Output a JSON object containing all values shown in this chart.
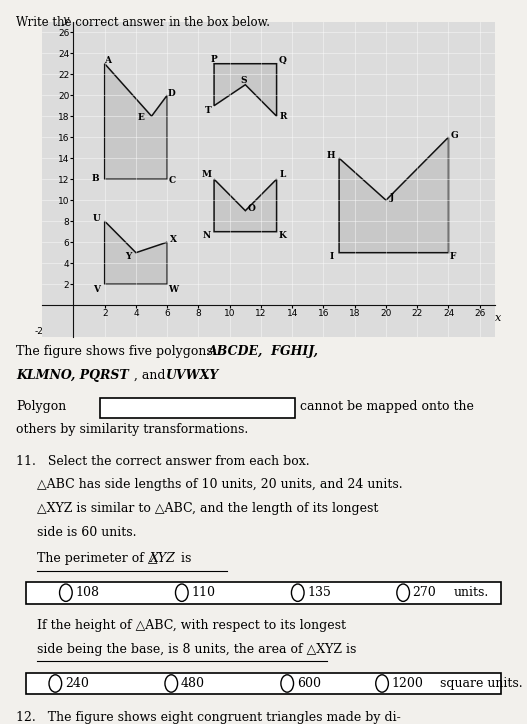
{
  "title": "Write the correct answer in the box below.",
  "bg_color": "#f2f0ec",
  "graph_bg": "#dcdcdc",
  "polygon_fill": "#c8c8c8",
  "polygon_edge": "#111111",
  "axis_color": "#111111",
  "xlabel": "x",
  "ylabel": "y",
  "xlim": [
    -2,
    27
  ],
  "ylim": [
    -3,
    27
  ],
  "xticks": [
    2,
    4,
    6,
    8,
    10,
    12,
    14,
    16,
    18,
    20,
    22,
    24,
    26
  ],
  "yticks": [
    2,
    4,
    6,
    8,
    10,
    12,
    14,
    16,
    18,
    20,
    22,
    24,
    26
  ],
  "ABCDE": [
    [
      2,
      12
    ],
    [
      2,
      23
    ],
    [
      5,
      18
    ],
    [
      6,
      20
    ],
    [
      6,
      12
    ]
  ],
  "ABCDE_labels": [
    "B",
    "A",
    "E",
    "D",
    "C"
  ],
  "ABCDE_loff": [
    [
      -0.6,
      0.1
    ],
    [
      0.2,
      0.3
    ],
    [
      -0.7,
      -0.1
    ],
    [
      0.3,
      0.2
    ],
    [
      0.3,
      -0.1
    ]
  ],
  "PQRST": [
    [
      9,
      19
    ],
    [
      9,
      23
    ],
    [
      13,
      23
    ],
    [
      13,
      18
    ],
    [
      11,
      21
    ]
  ],
  "PQRST_labels": [
    "T",
    "P",
    "Q",
    "R",
    "S"
  ],
  "PQRST_loff": [
    [
      -0.4,
      -0.5
    ],
    [
      0.0,
      0.4
    ],
    [
      0.4,
      0.3
    ],
    [
      0.4,
      0
    ],
    [
      -0.1,
      0.4
    ]
  ],
  "FGHIJ": [
    [
      17,
      14
    ],
    [
      17,
      5
    ],
    [
      24,
      5
    ],
    [
      24,
      16
    ],
    [
      20,
      10
    ]
  ],
  "FGHIJ_labels": [
    "H",
    "I",
    "F",
    "G",
    "J"
  ],
  "FGHIJ_loff": [
    [
      -0.5,
      0.3
    ],
    [
      -0.5,
      -0.4
    ],
    [
      0.3,
      -0.4
    ],
    [
      0.4,
      0.2
    ],
    [
      0.4,
      0.3
    ]
  ],
  "KLMNO": [
    [
      9,
      12
    ],
    [
      9,
      7
    ],
    [
      13,
      7
    ],
    [
      13,
      12
    ],
    [
      11,
      9
    ]
  ],
  "KLMNO_labels": [
    "M",
    "N",
    "K",
    "L",
    "O"
  ],
  "KLMNO_loff": [
    [
      -0.5,
      0.4
    ],
    [
      -0.5,
      -0.4
    ],
    [
      0.4,
      -0.4
    ],
    [
      0.4,
      0.4
    ],
    [
      0.4,
      0.2
    ]
  ],
  "UVWXY": [
    [
      2,
      8
    ],
    [
      2,
      2
    ],
    [
      6,
      2
    ],
    [
      6,
      6
    ],
    [
      4,
      5
    ]
  ],
  "UVWXY_labels": [
    "U",
    "V",
    "W",
    "X",
    "Y"
  ],
  "UVWXY_loff": [
    [
      -0.5,
      0.3
    ],
    [
      -0.5,
      -0.5
    ],
    [
      0.4,
      -0.5
    ],
    [
      0.4,
      0.3
    ],
    [
      -0.5,
      -0.4
    ]
  ]
}
